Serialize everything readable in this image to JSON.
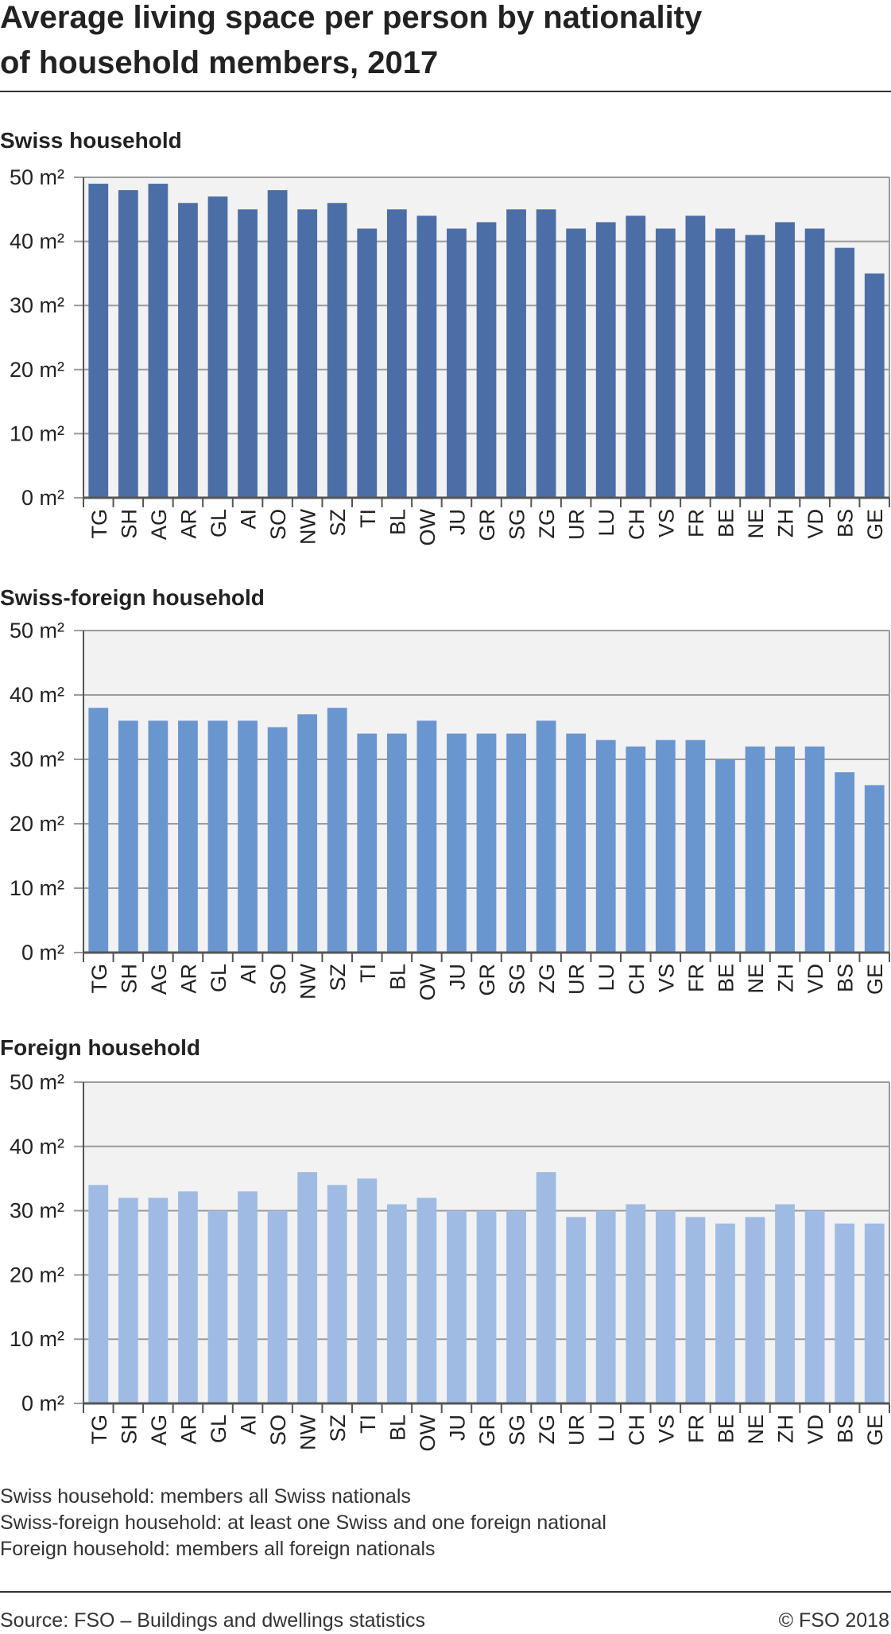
{
  "title_line1": "Average living space per person by nationality",
  "title_line2": "of household members, 2017",
  "notes": [
    "Swiss household: members all Swiss nationals",
    "Swiss-foreign household: at least one Swiss and one foreign national",
    "Foreign household: members all foreign nationals"
  ],
  "source": "Source: FSO – Buildings and dwellings statistics",
  "copyright": "© FSO 2018",
  "colors": {
    "plot_background": "#f2f2f2",
    "grid": "#9b9b9b",
    "axis": "#555555",
    "text": "#222222"
  },
  "chart_data": [
    {
      "type": "bar",
      "title": "Swiss household",
      "categories": [
        "TG",
        "SH",
        "AG",
        "AR",
        "GL",
        "AI",
        "SO",
        "NW",
        "SZ",
        "TI",
        "BL",
        "OW",
        "JU",
        "GR",
        "SG",
        "ZG",
        "UR",
        "LU",
        "CH",
        "VS",
        "FR",
        "BE",
        "NE",
        "ZH",
        "VD",
        "BS",
        "GE"
      ],
      "values": [
        49,
        48,
        49,
        46,
        47,
        45,
        48,
        45,
        46,
        42,
        45,
        44,
        42,
        43,
        45,
        45,
        42,
        43,
        44,
        42,
        44,
        42,
        41,
        43,
        42,
        39,
        35
      ],
      "ylim": [
        0,
        50
      ],
      "yticks": [
        0,
        10,
        20,
        30,
        40,
        50
      ],
      "ytick_labels": [
        "0 m²",
        "10 m²",
        "20 m²",
        "30 m²",
        "40 m²",
        "50 m²"
      ],
      "color": "#4b6ea6",
      "grid": true
    },
    {
      "type": "bar",
      "title": "Swiss-foreign household",
      "categories": [
        "TG",
        "SH",
        "AG",
        "AR",
        "GL",
        "AI",
        "SO",
        "NW",
        "SZ",
        "TI",
        "BL",
        "OW",
        "JU",
        "GR",
        "SG",
        "ZG",
        "UR",
        "LU",
        "CH",
        "VS",
        "FR",
        "BE",
        "NE",
        "ZH",
        "VD",
        "BS",
        "GE"
      ],
      "values": [
        38,
        36,
        36,
        36,
        36,
        36,
        35,
        37,
        38,
        34,
        34,
        36,
        34,
        34,
        34,
        36,
        34,
        33,
        32,
        33,
        33,
        30,
        32,
        32,
        32,
        28,
        26
      ],
      "ylim": [
        0,
        50
      ],
      "yticks": [
        0,
        10,
        20,
        30,
        40,
        50
      ],
      "ytick_labels": [
        "0 m²",
        "10 m²",
        "20 m²",
        "30 m²",
        "40 m²",
        "50 m²"
      ],
      "color": "#6a96d0",
      "grid": true
    },
    {
      "type": "bar",
      "title": "Foreign household",
      "categories": [
        "TG",
        "SH",
        "AG",
        "AR",
        "GL",
        "AI",
        "SO",
        "NW",
        "SZ",
        "TI",
        "BL",
        "OW",
        "JU",
        "GR",
        "SG",
        "ZG",
        "UR",
        "LU",
        "CH",
        "VS",
        "FR",
        "BE",
        "NE",
        "ZH",
        "VD",
        "BS",
        "GE"
      ],
      "values": [
        34,
        32,
        32,
        33,
        30,
        33,
        30,
        36,
        34,
        35,
        31,
        32,
        30,
        30,
        30,
        36,
        29,
        30,
        31,
        30,
        29,
        28,
        29,
        31,
        30,
        28,
        28
      ],
      "ylim": [
        0,
        50
      ],
      "yticks": [
        0,
        10,
        20,
        30,
        40,
        50
      ],
      "ytick_labels": [
        "0 m²",
        "10 m²",
        "20 m²",
        "30 m²",
        "40 m²",
        "50 m²"
      ],
      "color": "#9fbbe4",
      "grid": true
    }
  ]
}
